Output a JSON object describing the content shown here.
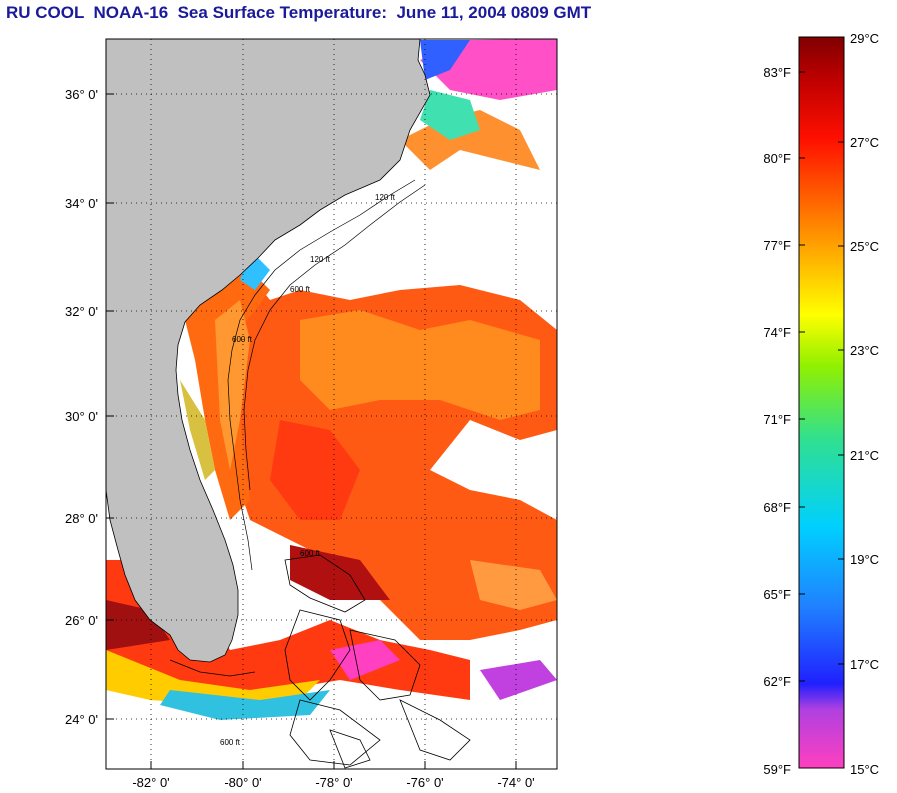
{
  "title": "RU COOL  NOAA-16  Sea Surface Temperature:  June 11, 2004 0809 GMT",
  "map": {
    "lat_labels": [
      "36° 0'",
      "34° 0'",
      "32° 0'",
      "30° 0'",
      "28° 0'",
      "26° 0'",
      "24° 0'"
    ],
    "lon_labels": [
      "-82° 0'",
      "-80° 0'",
      "-78° 0'",
      "-76° 0'",
      "-74° 0'"
    ],
    "contour_labels": [
      "120 ft",
      "600 ft",
      "120 ft",
      "600 ft",
      "600 ft",
      "600 ft"
    ],
    "colors": {
      "land": "#c0c0c0",
      "cloud": "#ffffff",
      "coast": "#000000"
    }
  },
  "colorbar": {
    "fahrenheit_labels": [
      "83°F",
      "80°F",
      "77°F",
      "74°F",
      "71°F",
      "68°F",
      "65°F",
      "62°F",
      "59°F"
    ],
    "celsius_labels": [
      "29°C",
      "27°C",
      "25°C",
      "23°C",
      "21°C",
      "19°C",
      "17°C",
      "15°C"
    ],
    "range_c": [
      15,
      29
    ],
    "colors": [
      "#ff40c0",
      "#b040e0",
      "#2020ff",
      "#2080ff",
      "#00d0ff",
      "#30e090",
      "#90f000",
      "#ffff00",
      "#ffb000",
      "#ff6000",
      "#ff1000",
      "#c00000",
      "#800000"
    ]
  }
}
